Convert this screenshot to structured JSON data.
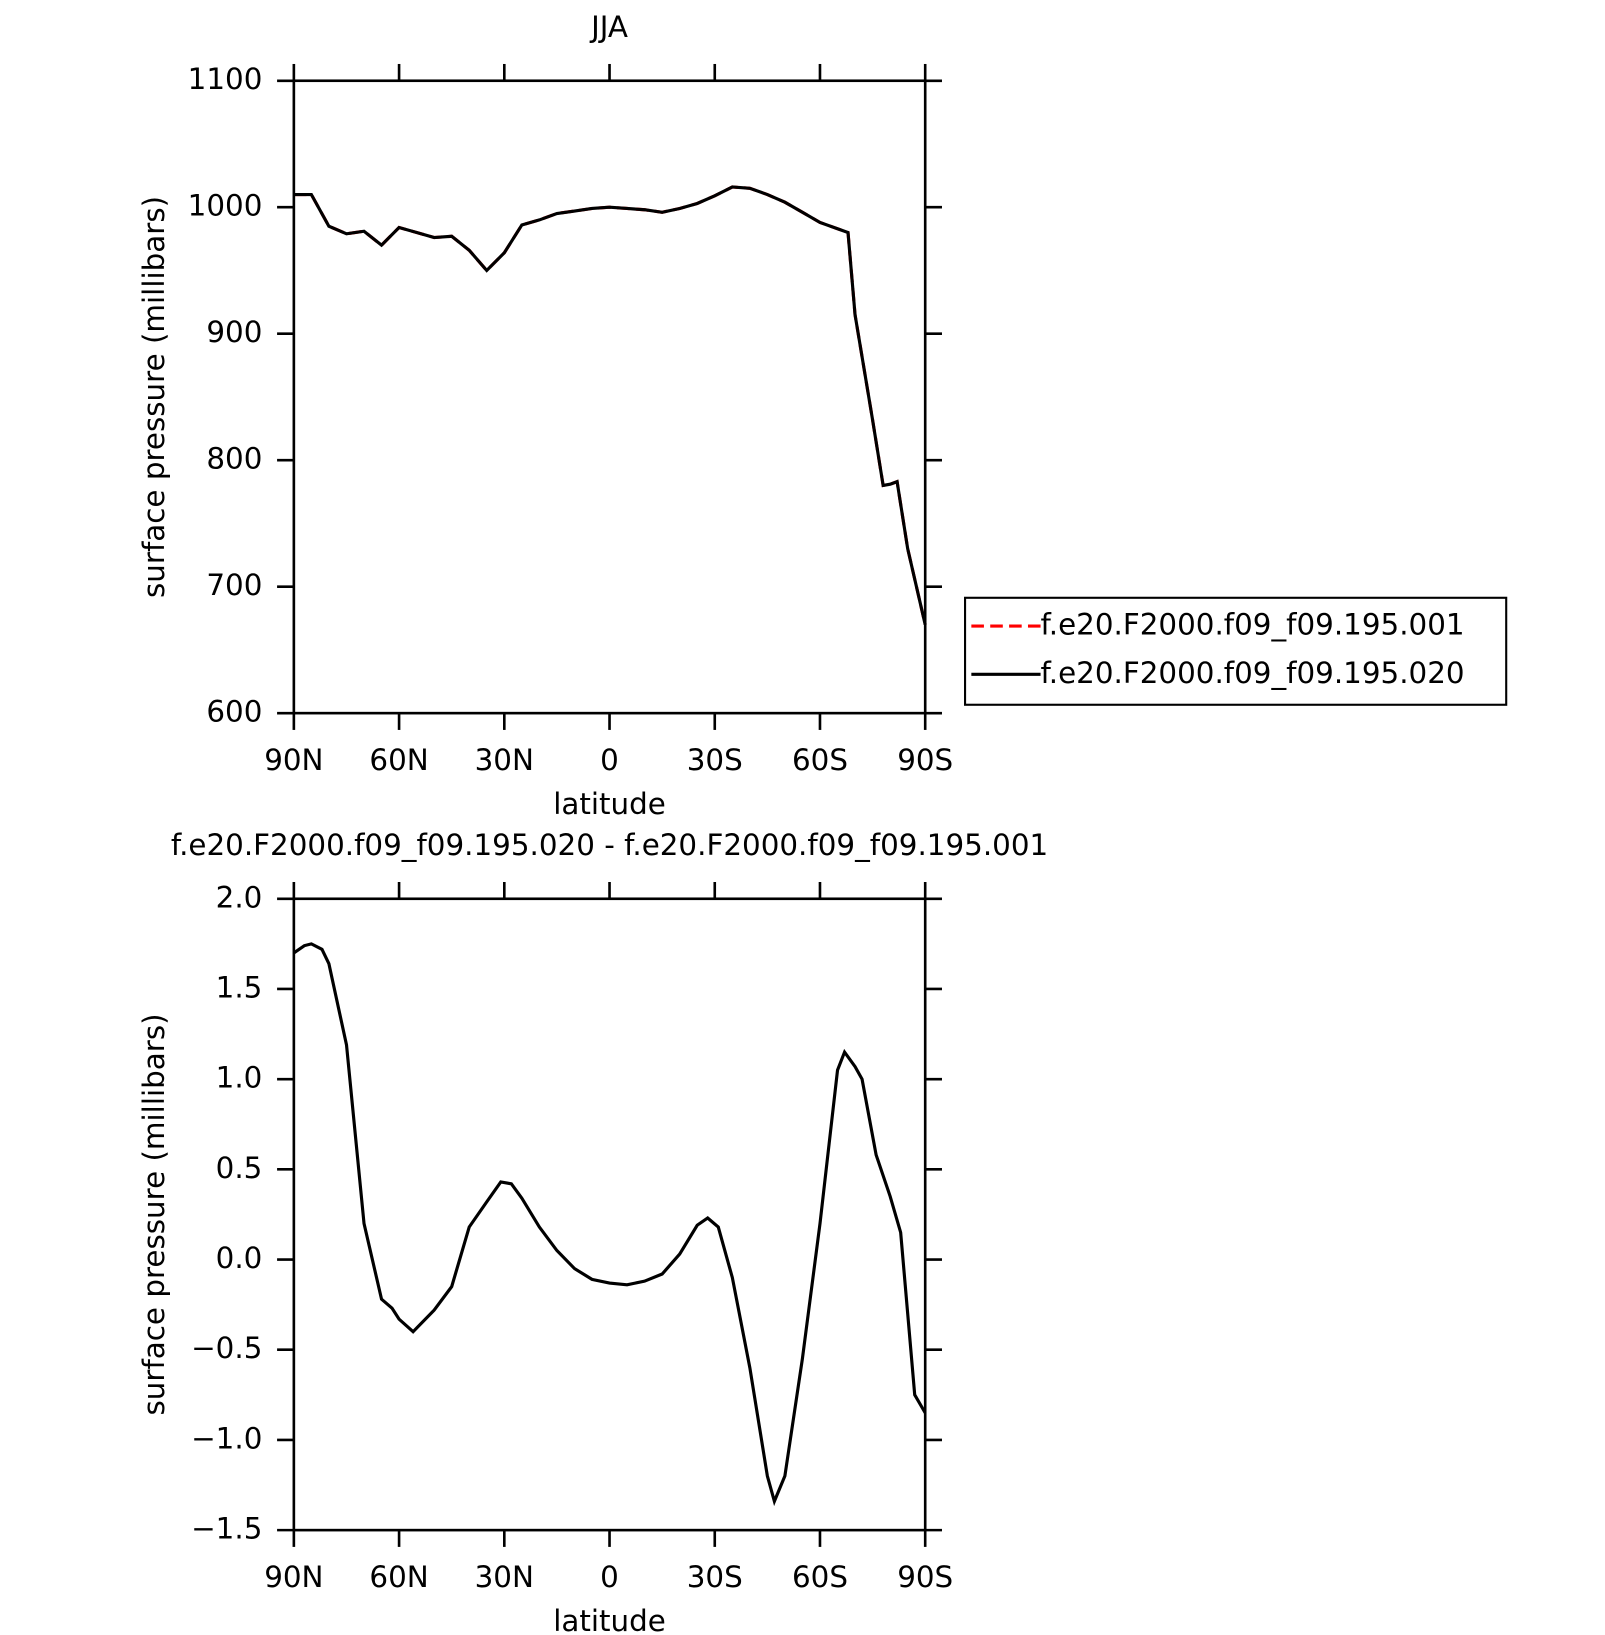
{
  "chart_data": [
    {
      "type": "line",
      "title": "JJA",
      "xlabel": "latitude",
      "ylabel": "surface pressure (millibars)",
      "x": [
        90,
        85,
        80,
        75,
        70,
        65,
        60,
        55,
        50,
        45,
        40,
        35,
        30,
        25,
        20,
        15,
        10,
        5,
        0,
        -5,
        -10,
        -15,
        -20,
        -25,
        -30,
        -35,
        -40,
        -45,
        -50,
        -55,
        -60,
        -65,
        -68,
        -70,
        -75,
        -78,
        -80,
        -82,
        -85,
        -90
      ],
      "series": [
        {
          "name": "f.e20.F2000.f09_f09.195.001",
          "color": "#ff0000",
          "linestyle": "dashed",
          "values": [
            1010,
            1010,
            985,
            979,
            981,
            970,
            984,
            980,
            976,
            977,
            966,
            950,
            964,
            986,
            990,
            995,
            997,
            999,
            1000,
            999,
            998,
            996,
            999,
            1003,
            1009,
            1016,
            1015,
            1010,
            1004,
            996,
            988,
            983,
            980,
            915,
            832,
            780,
            781,
            783,
            730,
            670
          ]
        },
        {
          "name": "f.e20.F2000.f09_f09.195.020",
          "color": "#000000",
          "linestyle": "solid",
          "values": [
            1010,
            1010,
            985,
            979,
            981,
            970,
            984,
            980,
            976,
            977,
            966,
            950,
            964,
            986,
            990,
            995,
            997,
            999,
            1000,
            999,
            998,
            996,
            999,
            1003,
            1009,
            1016,
            1015,
            1010,
            1004,
            996,
            988,
            983,
            980,
            915,
            832,
            780,
            781,
            783,
            730,
            670
          ]
        }
      ],
      "xlim": [
        90,
        -90
      ],
      "xticks": [
        {
          "value": 90,
          "label": "90N"
        },
        {
          "value": 60,
          "label": "60N"
        },
        {
          "value": 30,
          "label": "30N"
        },
        0,
        {
          "value": -30,
          "label": "30S"
        },
        {
          "value": -60,
          "label": "60S"
        },
        {
          "value": -90,
          "label": "90S"
        }
      ],
      "ylim": [
        600,
        1100
      ],
      "yticks": [
        600,
        700,
        800,
        900,
        1000,
        1100
      ],
      "legend": "right"
    },
    {
      "type": "line",
      "title": "f.e20.F2000.f09_f09.195.020 - f.e20.F2000.f09_f09.195.001",
      "xlabel": "latitude",
      "ylabel": "surface pressure (millibars)",
      "x": [
        90,
        87,
        85,
        82,
        80,
        75,
        70,
        65,
        62,
        60,
        56,
        50,
        45,
        40,
        35,
        31,
        28,
        25,
        20,
        15,
        10,
        5,
        0,
        -5,
        -10,
        -15,
        -20,
        -25,
        -28,
        -31,
        -35,
        -40,
        -45,
        -47,
        -50,
        -55,
        -60,
        -65,
        -67,
        -70,
        -72,
        -76,
        -80,
        -83,
        -85,
        -87,
        -90
      ],
      "series": [
        {
          "color": "#000000",
          "linestyle": "solid",
          "values": [
            1.7,
            1.74,
            1.75,
            1.72,
            1.64,
            1.19,
            0.2,
            -0.22,
            -0.27,
            -0.33,
            -0.4,
            -0.28,
            -0.15,
            0.18,
            0.32,
            0.43,
            0.42,
            0.34,
            0.18,
            0.05,
            -0.05,
            -0.11,
            -0.13,
            -0.14,
            -0.12,
            -0.08,
            0.03,
            0.19,
            0.23,
            0.18,
            -0.1,
            -0.6,
            -1.2,
            -1.34,
            -1.2,
            -0.55,
            0.2,
            1.05,
            1.15,
            1.07,
            1.0,
            0.58,
            0.35,
            0.15,
            -0.3,
            -0.75,
            -0.85
          ]
        }
      ],
      "xlim": [
        90,
        -90
      ],
      "xticks": [
        {
          "value": 90,
          "label": "90N"
        },
        {
          "value": 60,
          "label": "60N"
        },
        {
          "value": 30,
          "label": "30N"
        },
        0,
        {
          "value": -30,
          "label": "30S"
        },
        {
          "value": -60,
          "label": "60S"
        },
        {
          "value": -90,
          "label": "90S"
        }
      ],
      "ylim": [
        -1.5,
        2.0
      ],
      "yticks": [
        {
          "value": -1.5,
          "label": "−1.5"
        },
        {
          "value": -1.0,
          "label": "−1.0"
        },
        {
          "value": -0.5,
          "label": "−0.5"
        },
        {
          "value": 0.0,
          "label": "0.0"
        },
        {
          "value": 0.5,
          "label": "0.5"
        },
        {
          "value": 1.0,
          "label": "1.0"
        },
        {
          "value": 1.5,
          "label": "1.5"
        },
        {
          "value": 2.0,
          "label": "2.0"
        }
      ]
    }
  ]
}
